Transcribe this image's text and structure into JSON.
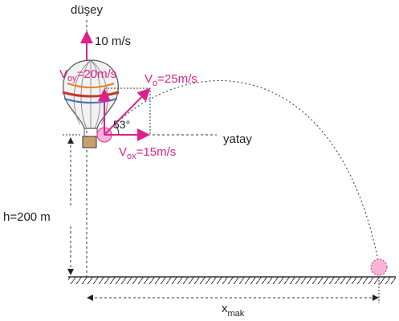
{
  "labels": {
    "vertical_axis": "düşey",
    "horizontal_axis": "yatay",
    "balloon_speed": "10 m/s",
    "angle": "53°",
    "height": "h=200 m",
    "voy": {
      "symbol": "V",
      "sub": "oy",
      "rest": "=20m/s"
    },
    "vo": {
      "symbol": "V",
      "sub": "o",
      "rest": "=25m/s"
    },
    "vox": {
      "symbol": "V",
      "sub": "ox",
      "rest": "=15m/s"
    },
    "range": {
      "symbol": "x",
      "sub": "mak"
    }
  }
}
